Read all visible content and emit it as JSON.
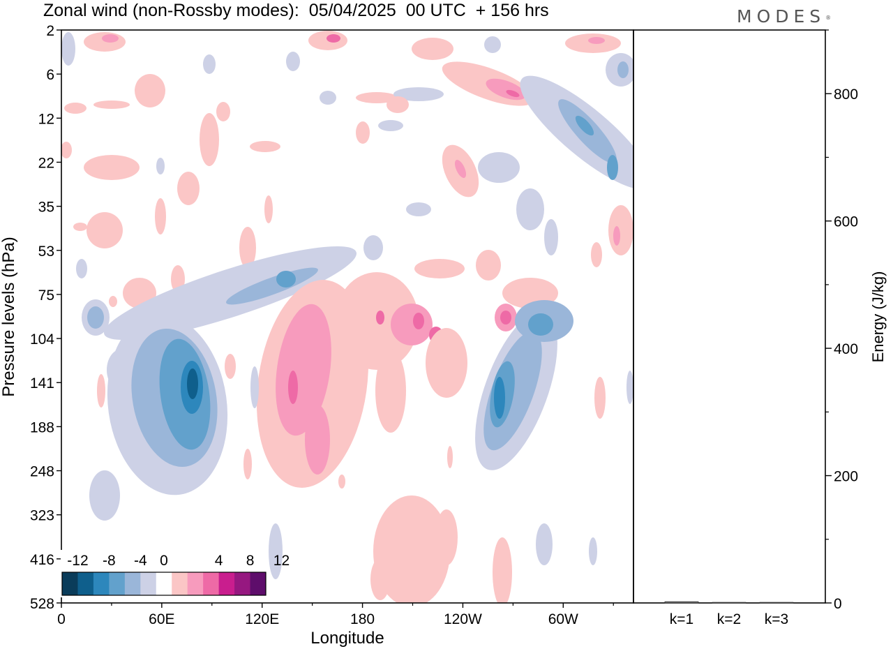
{
  "header": {
    "title": "Zonal wind (non-Rossby modes):  05/04/2025  00 UTC  + 156 hrs",
    "logo": "MODES"
  },
  "chart_data": [
    {
      "type": "heatmap",
      "title": "Zonal wind (non-Rossby modes):  05/04/2025  00 UTC  + 156 hrs",
      "xlabel": "Longitude",
      "ylabel": "Pressure levels (hPa)",
      "x_ticks": [
        "0",
        "60E",
        "120E",
        "180",
        "120W",
        "60W"
      ],
      "x_tick_degrees": [
        0,
        60,
        120,
        180,
        240,
        300
      ],
      "xlim_degrees": [
        0,
        342
      ],
      "y_levels": [
        "2",
        "6",
        "12",
        "22",
        "35",
        "53",
        "75",
        "104",
        "141",
        "188",
        "248",
        "323",
        "416",
        "528"
      ],
      "colorbar": {
        "labels": [
          "-12",
          "-8",
          "-4",
          "0",
          "4",
          "8",
          "12"
        ],
        "levels": [
          -14,
          -12,
          -10,
          -8,
          -6,
          -4,
          -2,
          2,
          4,
          6,
          8,
          10,
          12,
          14
        ],
        "colors": [
          "#0a3c5a",
          "#0f5f8c",
          "#2d87bc",
          "#62a1cc",
          "#9ab6d9",
          "#cdd1e6",
          "#ffffff",
          "#fbc6c6",
          "#f79bbd",
          "#ee6aa6",
          "#c91e8e",
          "#961880",
          "#5e0d6b"
        ]
      },
      "features": [
        {
          "kind": "negative",
          "lon": 78,
          "level": "141",
          "peak": -10
        },
        {
          "kind": "negative",
          "lon": 265,
          "level": "141",
          "peak": -10
        },
        {
          "kind": "negative",
          "lon": 285,
          "level": "104",
          "peak": -8
        },
        {
          "kind": "negative",
          "lon": 128,
          "level": "75",
          "peak": -6
        },
        {
          "kind": "negative",
          "lon": 315,
          "level": "12",
          "peak": -8
        },
        {
          "kind": "positive",
          "lon": 139,
          "level": "141",
          "peak": 6
        },
        {
          "kind": "positive",
          "lon": 155,
          "level": "188",
          "peak": 4
        },
        {
          "kind": "positive",
          "lon": 262,
          "level": "104",
          "peak": 4
        },
        {
          "kind": "positive",
          "lon": 270,
          "level": "6",
          "peak": 6
        },
        {
          "kind": "positive",
          "lon": 238,
          "level": "22",
          "peak": 4
        },
        {
          "kind": "positive",
          "lon": 210,
          "level": "416",
          "peak": 2
        }
      ]
    },
    {
      "type": "bar",
      "ylabel": "Energy (J/kg)",
      "categories": [
        "k=1",
        "k=2",
        "k=3"
      ],
      "values": [
        2,
        1,
        1
      ],
      "ylim": [
        0,
        900
      ],
      "y_ticks": [
        0,
        200,
        400,
        600,
        800
      ]
    }
  ]
}
